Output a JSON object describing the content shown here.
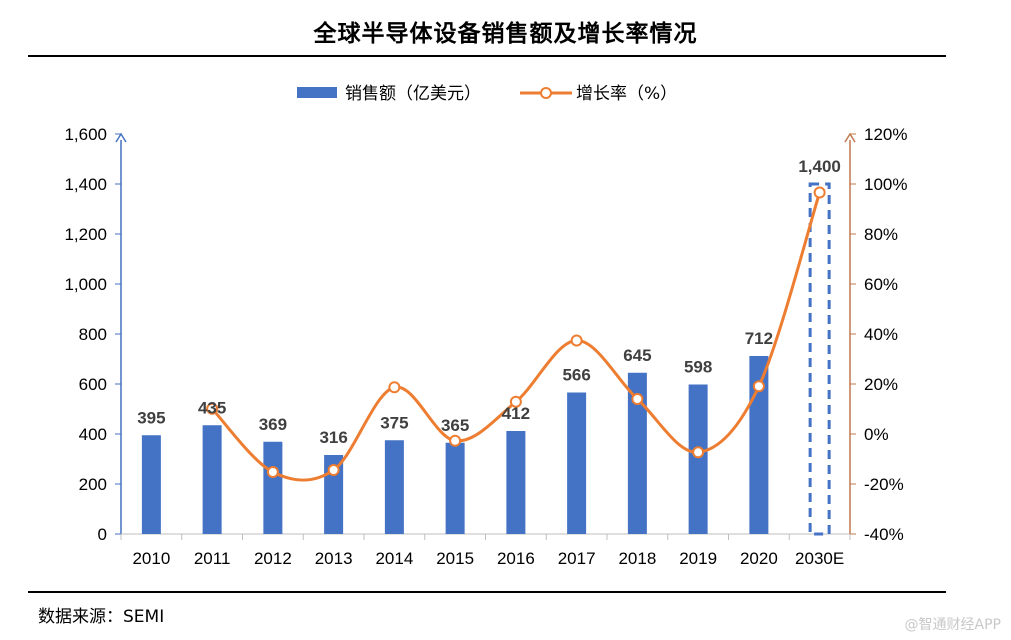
{
  "title": "全球半导体设备销售额及增长率情况",
  "source": "数据来源：SEMI",
  "watermark": "@智通财经APP",
  "colors": {
    "bar": "#4472c4",
    "line": "#ed7d31",
    "axis_left": "#4472c4",
    "axis_right": "#c0784c"
  },
  "chart_data": {
    "type": "bar",
    "title": "全球半导体设备销售额及增长率情况",
    "categories": [
      "2010",
      "2011",
      "2012",
      "2013",
      "2014",
      "2015",
      "2016",
      "2017",
      "2018",
      "2019",
      "2020",
      "2030E"
    ],
    "series": [
      {
        "name": "销售额（亿美元）",
        "type": "bar",
        "axis": "left",
        "values": [
          395,
          435,
          369,
          316,
          375,
          365,
          412,
          566,
          645,
          598,
          712,
          1400
        ],
        "labels": [
          "395",
          "435",
          "369",
          "316",
          "375",
          "365",
          "412",
          "566",
          "645",
          "598",
          "712",
          "1,400"
        ],
        "projected_index": 11
      },
      {
        "name": "增长率（%）",
        "type": "line",
        "axis": "right",
        "values": [
          null,
          10.1,
          -15.2,
          -14.4,
          18.7,
          -2.7,
          12.9,
          37.4,
          14.0,
          -7.3,
          19.1,
          96.6
        ]
      }
    ],
    "y_left": {
      "min": 0,
      "max": 1600,
      "ticks": [
        "0",
        "200",
        "400",
        "600",
        "800",
        "1,000",
        "1,200",
        "1,400",
        "1,600"
      ]
    },
    "y_right": {
      "min": -40,
      "max": 120,
      "ticks": [
        "-40%",
        "-20%",
        "0%",
        "20%",
        "40%",
        "60%",
        "80%",
        "100%",
        "120%"
      ]
    },
    "legend": [
      "销售额（亿美元）",
      "增长率（%）"
    ],
    "legend_position": "top-center",
    "grid": false
  }
}
